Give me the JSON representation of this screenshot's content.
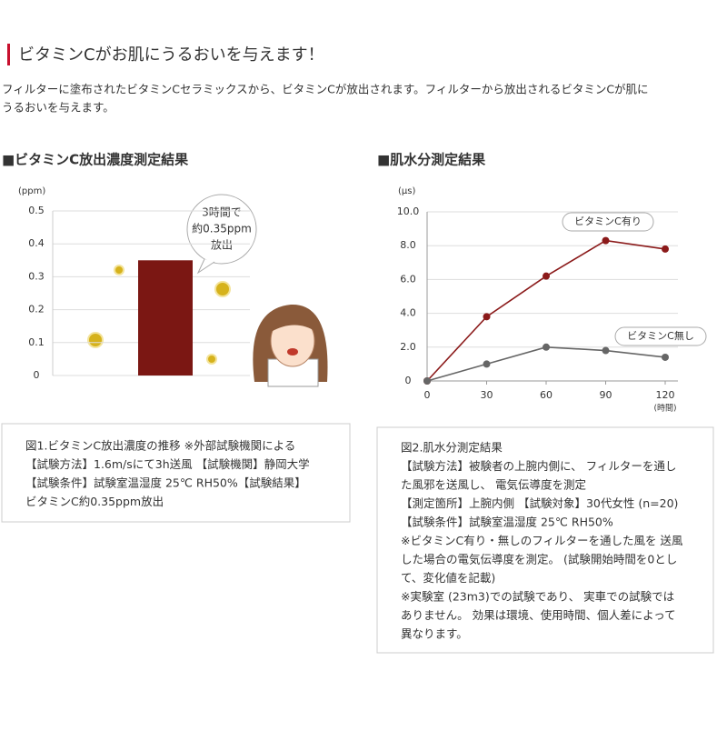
{
  "header": {
    "title": "ビタミンCがお肌にうるおいを与えます！",
    "description": [
      "フィルターに塗布されたビタミンCセラミックスから、ビタミンCが放出されます。フィルターから放出されるビタミンCが肌に",
      "うるおいを与えます。"
    ]
  },
  "chart_data": [
    {
      "type": "bar",
      "title": "■ビタミンC放出濃度測定結果",
      "y_label": "(ppm)",
      "categories": [
        null
      ],
      "values": [
        0.35
      ],
      "color": "#7b1713",
      "ylim": [
        0,
        0.5
      ],
      "yticks": [
        0,
        0.1,
        0.2,
        0.3,
        0.4,
        0.5
      ],
      "grid": true,
      "annotation": [
        "3時間で",
        "約0.35ppm",
        "放出"
      ],
      "caption": [
        "図1.ビタミンC放出濃度の推移 ※外部試験機関による",
        "【試験方法】1.6m/sにて3h送風 【試験機関】静岡大学",
        "【試験条件】試験室温湿度 25℃ RH50%【試験結果】",
        "ビタミンC約0.35ppm放出"
      ]
    },
    {
      "type": "line",
      "title": "■肌水分測定結果",
      "y_label": "(μs)",
      "x_label": "(時間)",
      "x": [
        0,
        30,
        60,
        90,
        120
      ],
      "xlim": [
        0,
        120
      ],
      "xticks": [
        0,
        30,
        60,
        90,
        120
      ],
      "ylim": [
        0,
        10
      ],
      "yticks": [
        0,
        {
          "value": 2,
          "label": "2.0"
        },
        {
          "value": 4,
          "label": "4.0"
        },
        {
          "value": 6,
          "label": "6.0"
        },
        {
          "value": 8,
          "label": "8.0"
        },
        {
          "value": 10,
          "label": "10.0"
        }
      ],
      "grid": true,
      "series": [
        {
          "name": "ビタミンC有り",
          "color": "#8b1a1a",
          "values": [
            0,
            3.8,
            6.2,
            8.3,
            7.8
          ]
        },
        {
          "name": "ビタミンC無し",
          "color": "#666666",
          "values": [
            0,
            1.0,
            2.0,
            1.8,
            1.4
          ]
        }
      ],
      "caption": [
        "図2.肌水分測定結果",
        "【試験方法】被験者の上腕内側に、 フィルターを通し",
        "た風邪を送風し、 電気伝導度を測定",
        "【測定箇所】上腕内側 【試験対象】30代女性 (n=20)",
        "【試験条件】試験室温湿度 25℃ RH50%",
        "※ビタミンC有り・無しのフィルターを通した風を 送風",
        "した場合の電気伝導度を測定。 (試験開始時間を0とし",
        "て、変化値を記載)",
        "※実験室 (23m3)での試験であり、 実車での試験では",
        "ありません。 効果は環境、使用時間、個人差によって",
        "異なります。"
      ]
    }
  ]
}
